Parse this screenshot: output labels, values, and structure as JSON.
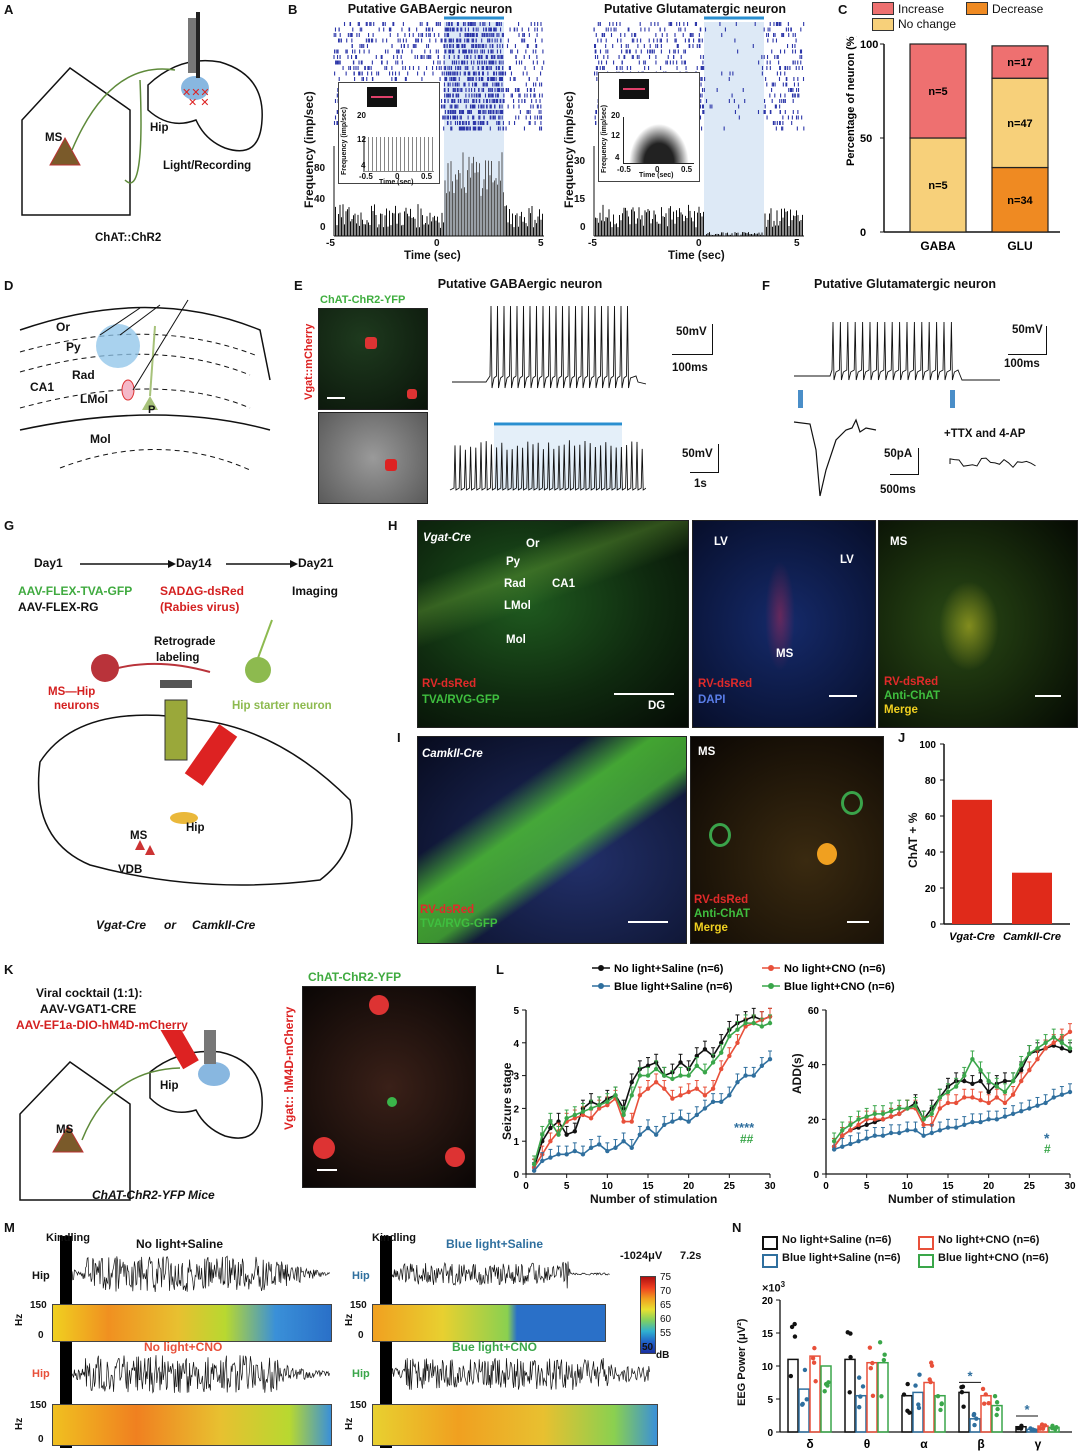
{
  "panel_letters": {
    "A": "A",
    "B": "B",
    "C": "C",
    "D": "D",
    "E": "E",
    "F": "F",
    "G": "G",
    "H": "H",
    "I": "I",
    "J": "J",
    "K": "K",
    "L": "L",
    "M": "M",
    "N": "N"
  },
  "A": {
    "ms": "MS",
    "hip": "Hip",
    "light_recording": "Light/Recording",
    "genotype": "ChAT::ChR2"
  },
  "B": {
    "left_title": "Putative GABAergic neuron",
    "right_title": "Putative Glutamatergic neuron",
    "ylabel": "Frequency (imp/sec)",
    "xlabel": "Time (sec)",
    "left_yticks": [
      "0",
      "40",
      "80"
    ],
    "right_yticks": [
      "0",
      "15",
      "30"
    ],
    "xticks": [
      "-5",
      "0",
      "5"
    ],
    "inset_ylabel": "Frequency (imp/sec)",
    "inset_xlabel": "Time (sec)",
    "left_inset_ticks": {
      "y": [
        "20",
        "12",
        "4"
      ],
      "x": [
        "-0.5",
        "0",
        "0.5"
      ]
    },
    "right_inset_ticks": {
      "y": [
        "20",
        "12",
        "4"
      ],
      "x": [
        "-0.5",
        "0",
        "0.5"
      ]
    }
  },
  "C": {
    "legend": {
      "increase": "Increase",
      "decrease": "Decrease",
      "no_change": "No change"
    },
    "ylabel": "Percentage of neuron (%)",
    "yticks": [
      "0",
      "50",
      "100"
    ],
    "colors": {
      "increase": "#ee7070",
      "no_change": "#f7d07a",
      "decrease": "#ef8a22"
    },
    "chart_data": {
      "type": "bar",
      "categories": [
        "GABA",
        "GLU"
      ],
      "series": [
        {
          "name": "No change",
          "values": [
            50,
            47.5
          ],
          "labels": [
            "n=5",
            "n=47"
          ]
        },
        {
          "name": "Increase",
          "values": [
            50,
            17.2
          ],
          "labels": [
            "n=5",
            "n=17"
          ]
        },
        {
          "name": "Decrease",
          "values": [
            0,
            34.3
          ],
          "labels": [
            "",
            "n=34"
          ]
        }
      ],
      "ylabel": "Percentage of neuron (%)",
      "ylim": [
        0,
        100
      ]
    }
  },
  "D": {
    "or": "Or",
    "py": "Py",
    "rad": "Rad",
    "ca1": "CA1",
    "lmol": "LMol",
    "mol": "Mol",
    "p": "P"
  },
  "E": {
    "title": "Putative GABAergic neuron",
    "chr2": "ChAT-ChR2-YFP",
    "vgat": "Vgat::mCherry",
    "scale_mv": "50mV",
    "scale_ms": "100ms",
    "scale_mv2": "50mV",
    "scale_s": "1s"
  },
  "F": {
    "title": "Putative Glutamatergic neuron",
    "scale_mv": "50mV",
    "scale_ms": "100ms",
    "scale_pa": "50pA",
    "scale_ms2": "500ms",
    "ttx": "+TTX and 4-AP"
  },
  "G": {
    "day1": "Day1",
    "day14": "Day14",
    "day21": "Day21",
    "aav1": "AAV-FLEX-TVA-GFP",
    "aav2": "AAV-FLEX-RG",
    "sad": "SADΔG-dsRed",
    "rabies": "(Rabies virus)",
    "imaging": "Imaging",
    "retro": "Retrograde",
    "labeling": "labeling",
    "ms_hip": "MS—Hip",
    "neurons": "neurons",
    "starter": "Hip starter neuron",
    "ms": "MS",
    "hip": "Hip",
    "vdb": "VDB",
    "vgatcre": "Vgat-Cre",
    "or": "or",
    "camk": "CamkII-Cre"
  },
  "H": {
    "vgatcre": "Vgat-Cre",
    "or": "Or",
    "py": "Py",
    "rad": "Rad",
    "ca1": "CA1",
    "lmol": "LMol",
    "mol": "Mol",
    "dg": "DG",
    "rv": "RV-dsRed",
    "tva": "TVA/RVG-GFP",
    "lv1": "LV",
    "lv2": "LV",
    "ms": "MS",
    "dapi": "DAPI",
    "ms2": "MS",
    "rv2": "RV-dsRed",
    "antichat": "Anti-ChAT",
    "merge": "Merge",
    "rv3": "RV-dsRed"
  },
  "I": {
    "camk": "CamkII-Cre",
    "rv": "RV-dsRed",
    "tva": "TVA/RVG-GFP",
    "ms": "MS",
    "rv2": "RV-dsRed",
    "antichat": "Anti-ChAT",
    "merge": "Merge"
  },
  "J": {
    "ylabel": "ChAT + %",
    "yticks": [
      "0",
      "20",
      "40",
      "60",
      "80",
      "100"
    ],
    "chart_data": {
      "type": "bar",
      "categories": [
        "Vgat-Cre",
        "CamkII-Cre"
      ],
      "values": [
        69,
        28.5
      ],
      "ylabel": "ChAT+ %",
      "ylim": [
        0,
        100
      ]
    }
  },
  "K": {
    "cocktail": "Viral cocktail (1:1):",
    "aav1": "AAV-VGAT1-CRE",
    "aav2": "AAV-EF1a-DIO-hM4D-mCherry",
    "ms": "MS",
    "hip": "Hip",
    "mice": "ChAT-ChR2-YFP Mice",
    "chr2": "ChAT-ChR2-YFP",
    "hm4d": "Vgat:: hM4D-mCherry"
  },
  "L": {
    "legend": [
      "No light+Saline (n=6)",
      "No light+CNO (n=6)",
      "Blue light+Saline (n=6)",
      "Blue light+CNO (n=6)"
    ],
    "colors": [
      "#111111",
      "#e8503a",
      "#2f6f9e",
      "#3aa64a"
    ],
    "left_ylabel": "Seizure stage",
    "right_ylabel": "ADD(s)",
    "xlabel": "Number of stimulation",
    "left_yticks": [
      "0",
      "1",
      "2",
      "3",
      "4",
      "5"
    ],
    "right_yticks": [
      "0",
      "20",
      "40",
      "60"
    ],
    "xticks": [
      "0",
      "5",
      "10",
      "15",
      "20",
      "25",
      "30"
    ],
    "sig_left_1": "****",
    "sig_left_2": "##",
    "sig_right_1": "*",
    "sig_right_2": "#",
    "chart_data": [
      {
        "type": "line",
        "xlabel": "Number of stimulation",
        "ylabel": "Seizure stage",
        "ylim": [
          0,
          5
        ],
        "x": [
          1,
          2,
          3,
          4,
          5,
          6,
          7,
          8,
          9,
          10,
          11,
          12,
          13,
          14,
          15,
          16,
          17,
          18,
          19,
          20,
          21,
          22,
          23,
          24,
          25,
          26,
          27,
          28,
          29,
          30
        ],
        "series": [
          {
            "name": "No light+Saline (n=6)",
            "values": [
              0.2,
              1.0,
              1.4,
              1.6,
              1.2,
              1.3,
              2.0,
              2.2,
              2.1,
              2.3,
              2.4,
              2.0,
              2.8,
              3.2,
              3.3,
              3.4,
              3.0,
              3.1,
              3.4,
              3.2,
              3.6,
              3.8,
              3.6,
              4.0,
              4.4,
              4.6,
              4.7,
              4.8,
              4.7,
              4.8
            ]
          },
          {
            "name": "No light+CNO (n=6)",
            "values": [
              0.2,
              0.6,
              1.0,
              1.3,
              1.6,
              1.7,
              1.8,
              1.7,
              2.0,
              2.1,
              2.3,
              1.6,
              1.6,
              2.4,
              2.6,
              2.8,
              2.6,
              2.3,
              2.4,
              2.5,
              2.6,
              2.4,
              2.6,
              3.2,
              3.6,
              4.0,
              4.5,
              4.6,
              4.7,
              4.8
            ]
          },
          {
            "name": "Blue light+Saline (n=6)",
            "values": [
              0.1,
              0.4,
              0.5,
              0.6,
              0.6,
              0.7,
              0.6,
              0.8,
              0.9,
              0.7,
              0.8,
              1.0,
              0.8,
              1.2,
              1.4,
              1.2,
              1.5,
              1.6,
              1.7,
              1.6,
              1.8,
              2.0,
              2.2,
              2.2,
              2.4,
              2.8,
              3.0,
              3.0,
              3.3,
              3.5
            ]
          },
          {
            "name": "Blue light+CNO (n=6)",
            "values": [
              0.3,
              1.2,
              1.6,
              1.2,
              1.7,
              1.8,
              1.9,
              2.0,
              2.1,
              2.2,
              2.4,
              1.8,
              2.4,
              3.0,
              3.0,
              3.2,
              3.0,
              2.9,
              3.0,
              3.0,
              3.3,
              3.1,
              3.4,
              3.7,
              4.2,
              4.4,
              4.6,
              4.6,
              4.5,
              4.6
            ]
          }
        ]
      },
      {
        "type": "line",
        "xlabel": "Number of stimulation",
        "ylabel": "ADD(s)",
        "ylim": [
          0,
          60
        ],
        "x": [
          1,
          2,
          3,
          4,
          5,
          6,
          7,
          8,
          9,
          10,
          11,
          12,
          13,
          14,
          15,
          16,
          17,
          18,
          19,
          20,
          21,
          22,
          23,
          24,
          25,
          26,
          27,
          28,
          29,
          30
        ],
        "series": [
          {
            "name": "No light+Saline (n=6)",
            "values": [
              10,
              14,
              16,
              17,
              18,
              19,
              20,
              21,
              22,
              24,
              26,
              20,
              24,
              28,
              32,
              34,
              34,
              33,
              34,
              30,
              33,
              34,
              34,
              38,
              44,
              45,
              46,
              47,
              46,
              45
            ]
          },
          {
            "name": "No light+CNO (n=6)",
            "values": [
              10,
              14,
              16,
              18,
              20,
              20,
              20,
              21,
              22,
              24,
              24,
              18,
              18,
              24,
              26,
              26,
              28,
              28,
              27,
              26,
              28,
              26,
              29,
              34,
              38,
              42,
              46,
              48,
              50,
              52
            ]
          },
          {
            "name": "Blue light+Saline (n=6)",
            "values": [
              9,
              10,
              11,
              12,
              13,
              14,
              14,
              15,
              15,
              16,
              16,
              14,
              15,
              16,
              17,
              17,
              18,
              19,
              19,
              20,
              20,
              21,
              22,
              23,
              24,
              25,
              26,
              28,
              29,
              30
            ]
          },
          {
            "name": "Blue light+CNO (n=6)",
            "values": [
              12,
              16,
              18,
              20,
              21,
              22,
              22,
              23,
              24,
              24,
              25,
              20,
              22,
              28,
              30,
              32,
              36,
              42,
              38,
              34,
              32,
              30,
              34,
              40,
              44,
              46,
              48,
              50,
              48,
              46
            ]
          }
        ]
      }
    ]
  },
  "M": {
    "kindling1": "Kindling",
    "kindling2": "Kindling",
    "t1": "No light+Saline",
    "t2": "Blue light+Saline",
    "t3": "No light+CNO",
    "t4": "Bue light+CNO",
    "hip": "Hip",
    "hz": "Hz",
    "hz150": "150",
    "hz0": "0",
    "scale": "-1024μV",
    "scale_t": "7.2s",
    "cbar_ticks": [
      "75",
      "70",
      "65",
      "60",
      "55",
      "50"
    ],
    "cbar_unit": "dB"
  },
  "N": {
    "legend": [
      "No light+Saline (n=6)",
      "No light+CNO (n=6)",
      "Blue light+Saline (n=6)",
      "Blue light+CNO (n=6)"
    ],
    "colors": [
      "#111111",
      "#e8503a",
      "#2f6f9e",
      "#3aa64a"
    ],
    "exp": "×10",
    "exp_pow": "3",
    "ylabel": "EEG Power (μV²)",
    "yticks": [
      "0",
      "5",
      "10",
      "15",
      "20"
    ],
    "sig": [
      "*",
      "*"
    ],
    "chart_data": {
      "type": "bar",
      "categories": [
        "δ",
        "θ",
        "α",
        "β",
        "γ"
      ],
      "ylim": [
        0,
        20
      ],
      "series": [
        {
          "name": "No light+Saline (n=6)",
          "values": [
            11,
            11,
            5.5,
            6,
            0.8
          ]
        },
        {
          "name": "Blue light+Saline (n=6)",
          "values": [
            6.5,
            5.5,
            6,
            2,
            0.4
          ]
        },
        {
          "name": "No light+CNO (n=6)",
          "values": [
            11.5,
            10.5,
            7.5,
            5.5,
            0.9
          ]
        },
        {
          "name": "Blue light+CNO (n=6)",
          "values": [
            10,
            10.5,
            5.5,
            4,
            0.7
          ]
        }
      ]
    }
  }
}
